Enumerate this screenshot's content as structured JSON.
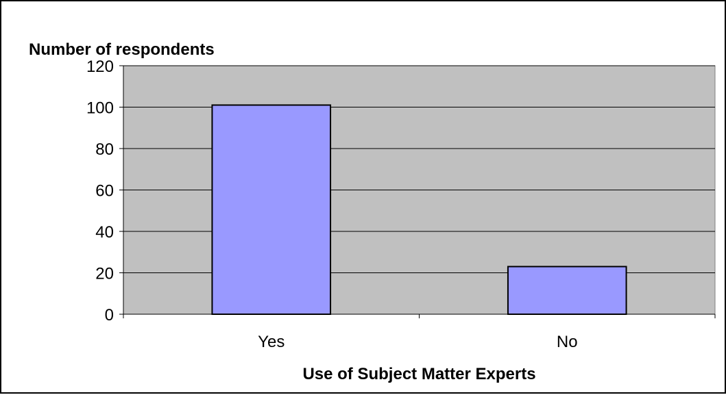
{
  "chart_data": {
    "type": "bar",
    "categories": [
      "Yes",
      "No"
    ],
    "values": [
      101,
      23
    ],
    "title": "",
    "xlabel": "Use of Subject Matter Experts",
    "ylabel": "Number of respondents",
    "ylim": [
      0,
      120
    ],
    "yticks": [
      "0",
      "20",
      "40",
      "60",
      "80",
      "100",
      "120"
    ],
    "grid": true,
    "legend": "none",
    "colors": {
      "bar_fill": "#9999FF",
      "plot_background": "#C0C0C0",
      "gridline": "#000000"
    }
  }
}
